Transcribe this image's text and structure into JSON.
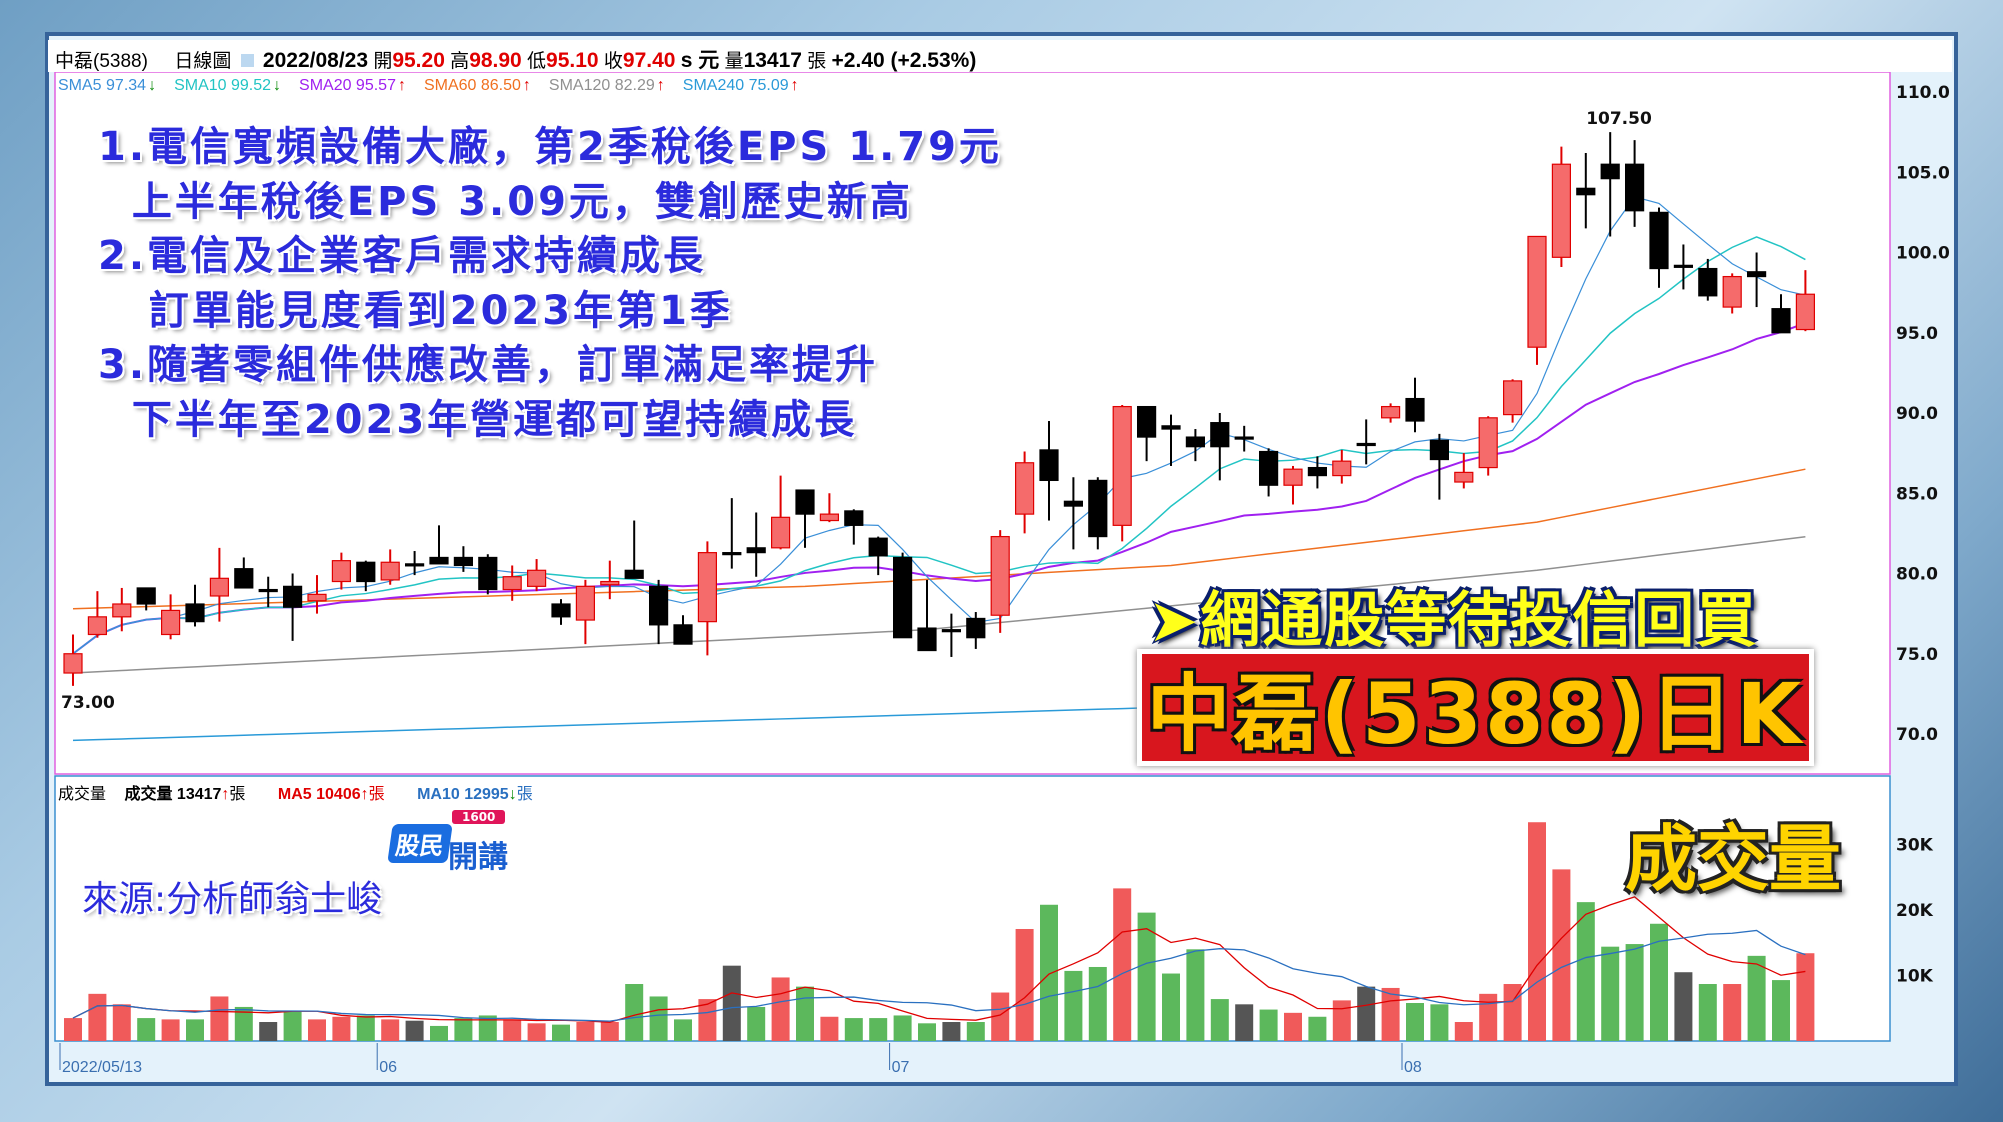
{
  "header": {
    "stock": "中磊(5388)",
    "chart_type": "日線圖",
    "date": "2022/08/23",
    "open_label": "開",
    "open": "95.20",
    "high_label": "高",
    "high": "98.90",
    "low_label": "低",
    "low": "95.10",
    "close_label": "收",
    "close": "97.40",
    "unit": "s 元",
    "vol_label": "量",
    "volume": "13417",
    "vol_unit": "張",
    "change": "+2.40 (+2.53%)"
  },
  "sma_legend": [
    {
      "label": "SMA5 97.34",
      "dir": "↓",
      "color": "#3a8fd8"
    },
    {
      "label": "SMA10 99.52",
      "dir": "↓",
      "color": "#22c4c4"
    },
    {
      "label": "SMA20 95.57",
      "dir": "↑",
      "color": "#a020f0"
    },
    {
      "label": "SMA60 86.50",
      "dir": "↑",
      "color": "#f07020"
    },
    {
      "label": "SMA120 82.29",
      "dir": "↑",
      "color": "#909090"
    },
    {
      "label": "SMA240 75.09",
      "dir": "↑",
      "color": "#2a9ad8"
    }
  ],
  "volume_legend": {
    "title": "成交量",
    "vol": "成交量 13417",
    "vol_dir": "↑",
    "ma5": "MA5 10406",
    "ma5_dir": "↑",
    "ma10": "MA10 12995",
    "ma10_dir": "↓",
    "unit": "張"
  },
  "notes": [
    "1.電信寬頻設備大廠，第2季稅後EPS 1.79元",
    "  上半年稅後EPS 3.09元，雙創歷史新高",
    "2.電信及企業客戶需求持續成長",
    "   訂單能見度看到2023年第1季",
    "3.隨著零組件供應改善，訂單滿足率提升",
    "  下半年至2023年營運都可望持續成長"
  ],
  "banner": "➤網通股等待投信回買",
  "title_box": "中磊(5388)日K",
  "volume_title": "成交量",
  "source": "來源:分析師翁士峻",
  "logo": {
    "text1": "股民",
    "text2": "開講",
    "badge": "1600"
  },
  "chart_data": {
    "type": "candlestick",
    "price_axis": {
      "ylim": [
        70,
        110
      ],
      "ticks": [
        "110.0",
        "105.0",
        "100.0",
        "95.0",
        "90.0",
        "85.0",
        "80.0",
        "75.0",
        "70.0"
      ]
    },
    "volume_axis": {
      "unit": "K",
      "ticks": [
        "30K",
        "20K",
        "10K"
      ]
    },
    "date_labels": [
      {
        "index": 0,
        "label": "2022/05/13"
      },
      {
        "index": 13,
        "label": "06"
      },
      {
        "index": 34,
        "label": "07"
      },
      {
        "index": 55,
        "label": "08"
      }
    ],
    "annotations": [
      {
        "index": 63,
        "value": 107.5,
        "label": "107.50"
      },
      {
        "index": 0,
        "value": 73.0,
        "label": "73.00"
      }
    ],
    "ohlc": [
      [
        73.8,
        76.2,
        73.0,
        75.0
      ],
      [
        76.2,
        78.9,
        76.0,
        77.3
      ],
      [
        77.3,
        79.1,
        76.4,
        78.1
      ],
      [
        79.1,
        79.1,
        77.7,
        78.1
      ],
      [
        76.2,
        78.7,
        75.9,
        77.7
      ],
      [
        78.1,
        79.3,
        76.7,
        77.0
      ],
      [
        78.6,
        81.6,
        77.0,
        79.7
      ],
      [
        80.3,
        81.0,
        79.1,
        79.1
      ],
      [
        79.0,
        79.8,
        77.9,
        79.0
      ],
      [
        79.2,
        80.0,
        75.8,
        77.9
      ],
      [
        78.3,
        79.9,
        77.5,
        78.7
      ],
      [
        79.5,
        81.3,
        79.0,
        80.8
      ],
      [
        80.7,
        80.8,
        78.9,
        79.5
      ],
      [
        79.6,
        81.5,
        79.3,
        80.7
      ],
      [
        80.6,
        81.4,
        79.9,
        80.5
      ],
      [
        81.0,
        83.0,
        80.6,
        80.6
      ],
      [
        81.0,
        81.7,
        80.1,
        80.5
      ],
      [
        81.0,
        81.2,
        78.7,
        79.0
      ],
      [
        79.0,
        80.5,
        78.3,
        79.8
      ],
      [
        79.2,
        80.9,
        78.9,
        80.2
      ],
      [
        78.1,
        78.4,
        76.8,
        77.3
      ],
      [
        77.1,
        79.6,
        75.6,
        79.2
      ],
      [
        79.3,
        80.8,
        78.4,
        79.5
      ],
      [
        80.2,
        83.3,
        79.7,
        79.7
      ],
      [
        79.2,
        79.6,
        75.6,
        76.8
      ],
      [
        76.8,
        77.4,
        75.6,
        75.6
      ],
      [
        77.0,
        82.0,
        74.9,
        81.3
      ],
      [
        81.3,
        84.7,
        80.3,
        81.2
      ],
      [
        81.6,
        83.8,
        79.8,
        81.3
      ],
      [
        81.6,
        86.1,
        81.5,
        83.5
      ],
      [
        85.2,
        85.2,
        81.6,
        83.7
      ],
      [
        83.3,
        85.0,
        83.2,
        83.7
      ],
      [
        83.9,
        84.0,
        81.8,
        83.0
      ],
      [
        82.2,
        82.3,
        79.9,
        81.1
      ],
      [
        81.0,
        81.3,
        76.0,
        76.0
      ],
      [
        76.6,
        79.6,
        75.2,
        75.2
      ],
      [
        76.5,
        77.5,
        74.8,
        76.5
      ],
      [
        77.2,
        77.6,
        75.3,
        76.0
      ],
      [
        77.4,
        82.7,
        76.3,
        82.3
      ],
      [
        83.7,
        87.6,
        82.5,
        86.9
      ],
      [
        87.7,
        89.5,
        83.3,
        85.8
      ],
      [
        84.5,
        86.0,
        81.5,
        84.2
      ],
      [
        85.8,
        86.0,
        81.5,
        82.3
      ],
      [
        83.0,
        90.5,
        82.0,
        90.4
      ],
      [
        90.4,
        90.4,
        87.0,
        88.5
      ],
      [
        89.2,
        89.9,
        86.7,
        89.0
      ],
      [
        88.5,
        89.0,
        87.0,
        87.9
      ],
      [
        89.4,
        90.0,
        85.8,
        87.9
      ],
      [
        88.5,
        89.2,
        87.6,
        88.4
      ],
      [
        87.6,
        87.8,
        84.8,
        85.5
      ],
      [
        85.5,
        86.7,
        84.3,
        86.5
      ],
      [
        86.6,
        87.3,
        85.3,
        86.1
      ],
      [
        86.1,
        87.7,
        85.6,
        87.0
      ],
      [
        88.1,
        89.6,
        86.8,
        88.0
      ],
      [
        89.7,
        90.6,
        89.4,
        90.4
      ],
      [
        90.9,
        92.2,
        88.8,
        89.5
      ],
      [
        88.3,
        88.7,
        84.6,
        87.1
      ],
      [
        85.7,
        87.5,
        85.3,
        86.3
      ],
      [
        86.6,
        89.8,
        86.1,
        89.7
      ],
      [
        89.9,
        92.1,
        89.4,
        92.0
      ],
      [
        94.1,
        101.0,
        93.0,
        101.0
      ],
      [
        99.7,
        106.6,
        99.1,
        105.5
      ],
      [
        104.0,
        106.2,
        101.5,
        103.6
      ],
      [
        105.5,
        107.5,
        101.0,
        104.6
      ],
      [
        105.5,
        107.0,
        101.6,
        102.6
      ],
      [
        102.5,
        102.8,
        97.8,
        99.0
      ],
      [
        99.2,
        100.5,
        97.7,
        99.1
      ],
      [
        99.0,
        99.6,
        97.0,
        97.3
      ],
      [
        96.6,
        98.7,
        96.2,
        98.5
      ],
      [
        98.8,
        100.0,
        96.6,
        98.5
      ],
      [
        96.5,
        97.4,
        95.0,
        95.0
      ],
      [
        95.2,
        98.9,
        95.1,
        97.4
      ]
    ],
    "volume_k": [
      3.5,
      7.2,
      5.6,
      3.5,
      3.3,
      3.3,
      6.8,
      5.2,
      2.9,
      4.5,
      3.3,
      3.7,
      3.9,
      3.3,
      3.1,
      2.3,
      3.5,
      3.9,
      3.3,
      2.7,
      2.5,
      2.9,
      2.9,
      8.7,
      6.8,
      3.3,
      6.4,
      11.5,
      5.2,
      9.7,
      8.3,
      3.7,
      3.5,
      3.5,
      3.9,
      2.7,
      2.9,
      2.9,
      7.4,
      17.1,
      20.8,
      10.7,
      11.3,
      23.3,
      19.6,
      10.3,
      14.0,
      6.4,
      5.6,
      4.8,
      4.3,
      3.7,
      6.2,
      8.3,
      8.1,
      5.8,
      5.6,
      2.9,
      7.2,
      8.7,
      33.4,
      26.2,
      21.2,
      14.4,
      14.8,
      17.9,
      10.5,
      8.7,
      8.7,
      13.0,
      9.3,
      13.4
    ],
    "sma60": [
      [
        0,
        77.8
      ],
      [
        30,
        79.2
      ],
      [
        45,
        80.5
      ],
      [
        60,
        83.2
      ],
      [
        71,
        86.5
      ]
    ],
    "sma120": [
      [
        0,
        73.8
      ],
      [
        35,
        76.5
      ],
      [
        60,
        80.2
      ],
      [
        71,
        82.29
      ]
    ],
    "sma240": [
      [
        0,
        69.6
      ],
      [
        52,
        72.0
      ]
    ],
    "colors": {
      "up": "#f56b6b",
      "up_edge": "#e00000",
      "down": "#000000",
      "vol_up": "#f05a5a",
      "vol_down": "#5cb85c",
      "vol_flat": "#555555",
      "vol_ma5": "#e00000",
      "vol_ma10": "#2a70c0"
    }
  }
}
